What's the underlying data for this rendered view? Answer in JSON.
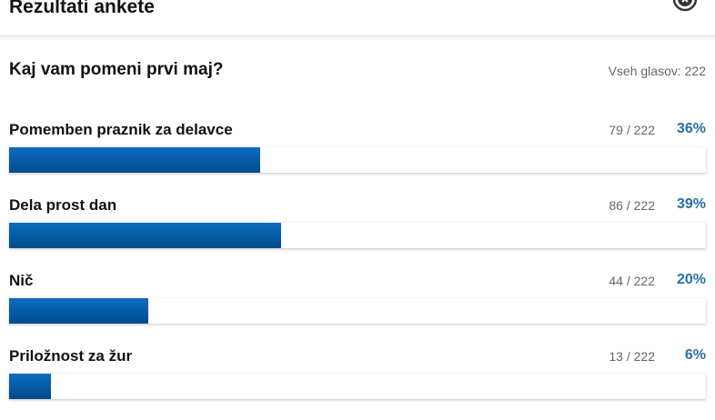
{
  "header": {
    "title": "Rezultati ankete",
    "close_icon": "close-circle-icon"
  },
  "poll": {
    "question": "Kaj vam pomeni prvi maj?",
    "total_label": "Vseh glasov: 222",
    "bar_color": "#0a62ad",
    "percent_color": "#2a6ea6",
    "options": [
      {
        "label": "Pomemben praznik za delavce",
        "count": "79 / 222",
        "percent": "36%",
        "value": 36
      },
      {
        "label": "Dela prost dan",
        "count": "86 / 222",
        "percent": "39%",
        "value": 39
      },
      {
        "label": "Nič",
        "count": "44 / 222",
        "percent": "20%",
        "value": 20
      },
      {
        "label": "Priložnost za žur",
        "count": "13 / 222",
        "percent": "6%",
        "value": 6
      }
    ]
  }
}
